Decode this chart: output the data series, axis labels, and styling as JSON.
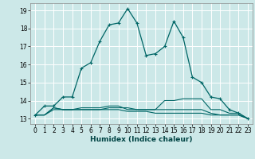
{
  "xlabel": "Humidex (Indice chaleur)",
  "bg_color": "#cce8e8",
  "grid_color": "#ffffff",
  "grid_minor_color": "#ddeedd",
  "line_color": "#006666",
  "x_ticks": [
    0,
    1,
    2,
    3,
    4,
    5,
    6,
    7,
    8,
    9,
    10,
    11,
    12,
    13,
    14,
    15,
    16,
    17,
    18,
    19,
    20,
    21,
    22,
    23
  ],
  "ylim": [
    12.7,
    19.4
  ],
  "xlim": [
    -0.5,
    23.5
  ],
  "series": [
    {
      "x": [
        0,
        1,
        2,
        3,
        4,
        5,
        6,
        7,
        8,
        9,
        10,
        11,
        12,
        13,
        14,
        15,
        16,
        17,
        18,
        19,
        20,
        21,
        22,
        23
      ],
      "y": [
        13.2,
        13.7,
        13.7,
        14.2,
        14.2,
        15.8,
        16.1,
        17.3,
        18.2,
        18.3,
        19.1,
        18.3,
        16.5,
        16.6,
        17.0,
        18.4,
        17.5,
        15.3,
        15.0,
        14.2,
        14.1,
        13.5,
        13.3,
        13.0
      ],
      "marker": true
    },
    {
      "x": [
        0,
        1,
        2,
        3,
        4,
        5,
        6,
        7,
        8,
        9,
        10,
        11,
        12,
        13,
        14,
        15,
        16,
        17,
        18,
        19,
        20,
        21,
        22,
        23
      ],
      "y": [
        13.2,
        13.2,
        13.6,
        13.5,
        13.5,
        13.5,
        13.5,
        13.5,
        13.6,
        13.6,
        13.6,
        13.5,
        13.5,
        13.5,
        14.0,
        14.0,
        14.1,
        14.1,
        14.1,
        13.5,
        13.5,
        13.3,
        13.3,
        13.0
      ],
      "marker": false
    },
    {
      "x": [
        0,
        1,
        2,
        3,
        4,
        5,
        6,
        7,
        8,
        9,
        10,
        11,
        12,
        13,
        14,
        15,
        16,
        17,
        18,
        19,
        20,
        21,
        22,
        23
      ],
      "y": [
        13.2,
        13.2,
        13.6,
        13.5,
        13.5,
        13.6,
        13.6,
        13.6,
        13.7,
        13.7,
        13.5,
        13.5,
        13.5,
        13.5,
        13.5,
        13.5,
        13.5,
        13.5,
        13.5,
        13.3,
        13.2,
        13.2,
        13.2,
        13.0
      ],
      "marker": false
    },
    {
      "x": [
        0,
        1,
        2,
        3,
        4,
        5,
        6,
        7,
        8,
        9,
        10,
        11,
        12,
        13,
        14,
        15,
        16,
        17,
        18,
        19,
        20,
        21,
        22,
        23
      ],
      "y": [
        13.2,
        13.2,
        13.5,
        13.5,
        13.5,
        13.5,
        13.5,
        13.5,
        13.5,
        13.5,
        13.4,
        13.4,
        13.4,
        13.3,
        13.3,
        13.3,
        13.3,
        13.3,
        13.3,
        13.2,
        13.2,
        13.2,
        13.2,
        13.0
      ],
      "marker": false
    }
  ],
  "yticks": [
    13,
    14,
    15,
    16,
    17,
    18,
    19
  ],
  "font_size_ticks": 5.5,
  "font_size_xlabel": 6.5
}
